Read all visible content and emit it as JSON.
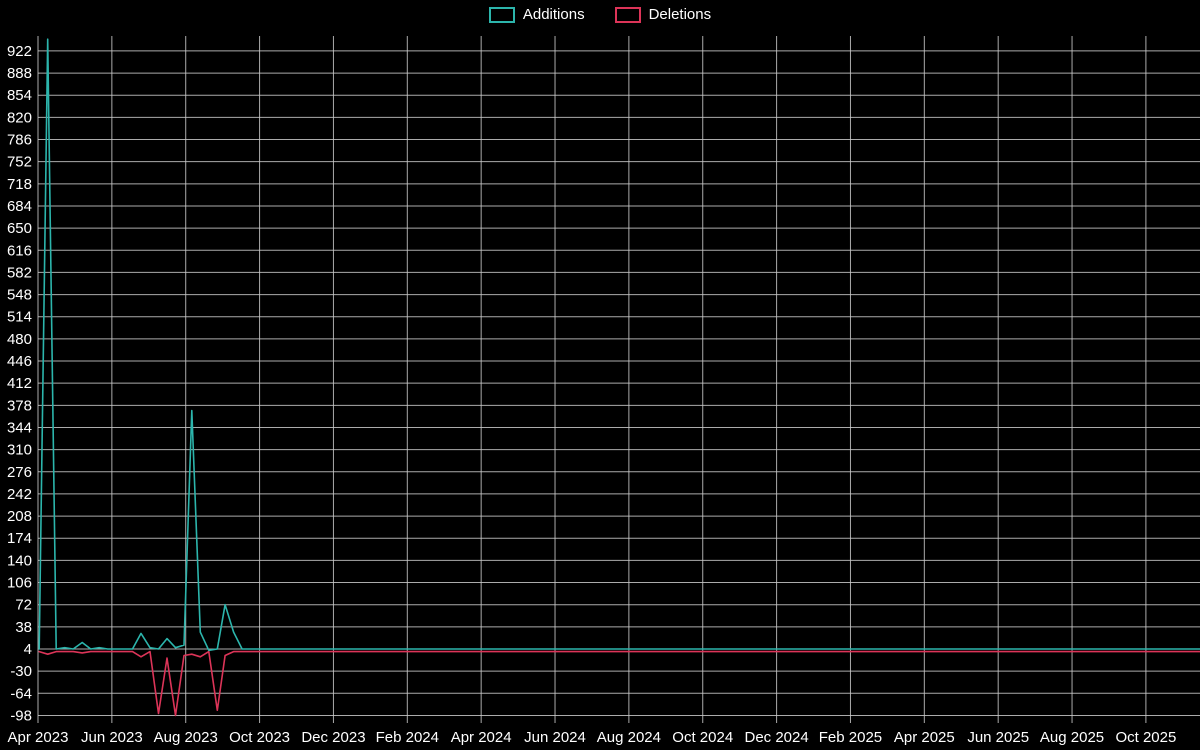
{
  "page": {
    "background": "#000000",
    "text_color": "#ffffff"
  },
  "legend": {
    "items": [
      {
        "label": "Additions",
        "color": "#2cb5ac"
      },
      {
        "label": "Deletions",
        "color": "#dc3458"
      }
    ]
  },
  "chart_data": {
    "type": "line",
    "title": "",
    "xlabel": "",
    "ylabel": "",
    "grid": true,
    "grid_color": "#c9c9c9",
    "plot_background": "#000000",
    "legend_position": "top-center",
    "x_axis": {
      "tick_labels": [
        "Apr 2023",
        "Jun 2023",
        "Aug 2023",
        "Oct 2023",
        "Dec 2023",
        "Feb 2024",
        "Apr 2024",
        "Jun 2024",
        "Aug 2024",
        "Oct 2024",
        "Dec 2024",
        "Feb 2025",
        "Apr 2025",
        "Jun 2025",
        "Aug 2025",
        "Oct 2025"
      ],
      "months_per_tick": 2,
      "start": "2023-04-01",
      "end": "2025-11-16"
    },
    "y_axis": {
      "ticks": [
        922,
        888,
        854,
        820,
        786,
        752,
        718,
        684,
        650,
        616,
        582,
        548,
        514,
        480,
        446,
        412,
        378,
        344,
        310,
        276,
        242,
        208,
        174,
        140,
        106,
        72,
        38,
        4,
        -30,
        -64,
        -98
      ],
      "tick_step": 34,
      "ylim": [
        -110,
        945
      ]
    },
    "series": [
      {
        "name": "Additions",
        "color": "#2cb5ac",
        "points": [
          [
            "2023-04-02",
            4
          ],
          [
            "2023-04-09",
            940
          ],
          [
            "2023-04-16",
            4
          ],
          [
            "2023-04-23",
            6
          ],
          [
            "2023-04-30",
            4
          ],
          [
            "2023-05-07",
            14
          ],
          [
            "2023-05-14",
            4
          ],
          [
            "2023-05-21",
            6
          ],
          [
            "2023-05-28",
            4
          ],
          [
            "2023-06-04",
            4
          ],
          [
            "2023-06-11",
            4
          ],
          [
            "2023-06-18",
            4
          ],
          [
            "2023-06-25",
            28
          ],
          [
            "2023-07-02",
            6
          ],
          [
            "2023-07-09",
            4
          ],
          [
            "2023-07-16",
            20
          ],
          [
            "2023-07-23",
            6
          ],
          [
            "2023-07-30",
            10
          ],
          [
            "2023-08-06",
            370
          ],
          [
            "2023-08-13",
            30
          ],
          [
            "2023-08-20",
            2
          ],
          [
            "2023-08-27",
            4
          ],
          [
            "2023-09-03",
            72
          ],
          [
            "2023-09-10",
            30
          ],
          [
            "2023-09-17",
            4
          ],
          [
            "2023-09-24",
            4
          ],
          [
            "2023-10-08",
            4
          ],
          [
            "2023-11-05",
            4
          ],
          [
            "2023-12-03",
            4
          ],
          [
            "2024-01-07",
            4
          ],
          [
            "2024-02-04",
            4
          ],
          [
            "2024-03-03",
            4
          ],
          [
            "2024-04-07",
            4
          ],
          [
            "2024-05-05",
            4
          ],
          [
            "2024-06-02",
            4
          ],
          [
            "2024-07-07",
            4
          ],
          [
            "2024-08-04",
            4
          ],
          [
            "2024-09-01",
            4
          ],
          [
            "2024-10-06",
            4
          ],
          [
            "2024-11-03",
            4
          ],
          [
            "2024-12-01",
            4
          ],
          [
            "2025-01-05",
            4
          ],
          [
            "2025-02-02",
            4
          ],
          [
            "2025-03-02",
            4
          ],
          [
            "2025-04-06",
            4
          ],
          [
            "2025-05-04",
            4
          ],
          [
            "2025-06-01",
            4
          ],
          [
            "2025-07-06",
            4
          ],
          [
            "2025-08-03",
            4
          ],
          [
            "2025-09-07",
            4
          ],
          [
            "2025-10-05",
            4
          ],
          [
            "2025-11-16",
            4
          ]
        ]
      },
      {
        "name": "Deletions",
        "color": "#dc3458",
        "points": [
          [
            "2023-04-02",
            0
          ],
          [
            "2023-04-09",
            -4
          ],
          [
            "2023-04-16",
            0
          ],
          [
            "2023-04-23",
            0
          ],
          [
            "2023-04-30",
            0
          ],
          [
            "2023-05-07",
            -2
          ],
          [
            "2023-05-14",
            0
          ],
          [
            "2023-05-21",
            0
          ],
          [
            "2023-05-28",
            0
          ],
          [
            "2023-06-04",
            0
          ],
          [
            "2023-06-11",
            0
          ],
          [
            "2023-06-18",
            0
          ],
          [
            "2023-06-25",
            -8
          ],
          [
            "2023-07-02",
            0
          ],
          [
            "2023-07-09",
            -95
          ],
          [
            "2023-07-16",
            -10
          ],
          [
            "2023-07-23",
            -98
          ],
          [
            "2023-07-30",
            -6
          ],
          [
            "2023-08-06",
            -4
          ],
          [
            "2023-08-13",
            -8
          ],
          [
            "2023-08-20",
            0
          ],
          [
            "2023-08-27",
            -90
          ],
          [
            "2023-09-03",
            -6
          ],
          [
            "2023-09-10",
            0
          ],
          [
            "2023-09-17",
            0
          ],
          [
            "2023-09-24",
            0
          ],
          [
            "2023-10-08",
            0
          ],
          [
            "2023-11-05",
            0
          ],
          [
            "2023-12-03",
            0
          ],
          [
            "2024-01-07",
            0
          ],
          [
            "2024-02-04",
            0
          ],
          [
            "2024-03-03",
            0
          ],
          [
            "2024-04-07",
            0
          ],
          [
            "2024-05-05",
            0
          ],
          [
            "2024-06-02",
            0
          ],
          [
            "2024-07-07",
            0
          ],
          [
            "2024-08-04",
            0
          ],
          [
            "2024-09-01",
            0
          ],
          [
            "2024-10-06",
            0
          ],
          [
            "2024-11-03",
            0
          ],
          [
            "2024-12-01",
            0
          ],
          [
            "2025-01-05",
            0
          ],
          [
            "2025-02-02",
            0
          ],
          [
            "2025-03-02",
            0
          ],
          [
            "2025-04-06",
            0
          ],
          [
            "2025-05-04",
            0
          ],
          [
            "2025-06-01",
            0
          ],
          [
            "2025-07-06",
            0
          ],
          [
            "2025-08-03",
            0
          ],
          [
            "2025-09-07",
            0
          ],
          [
            "2025-10-05",
            0
          ],
          [
            "2025-11-16",
            0
          ]
        ]
      }
    ]
  }
}
